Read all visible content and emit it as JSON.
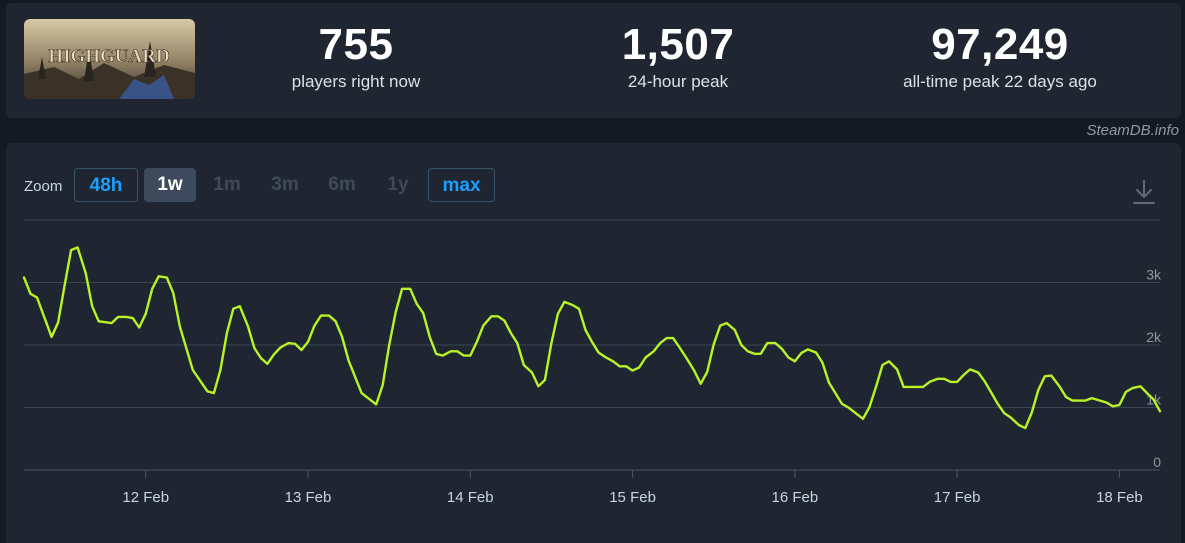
{
  "stats": {
    "current": {
      "value": "755",
      "label": "players right now"
    },
    "peak24": {
      "value": "1,507",
      "label": "24-hour peak"
    },
    "alltime": {
      "value": "97,249",
      "label": "all-time peak 22 days ago"
    }
  },
  "game": {
    "logo_text": "HIGHGUARD"
  },
  "watermark": "SteamDB.info",
  "zoom": {
    "label": "Zoom",
    "buttons": [
      {
        "label": "48h",
        "state": "link"
      },
      {
        "label": "1w",
        "state": "selected"
      },
      {
        "label": "1m",
        "state": "disabled"
      },
      {
        "label": "3m",
        "state": "disabled"
      },
      {
        "label": "6m",
        "state": "disabled"
      },
      {
        "label": "1y",
        "state": "disabled"
      },
      {
        "label": "max",
        "state": "link"
      }
    ]
  },
  "icons": {
    "download": "download-icon"
  },
  "colors": {
    "line": "#b9f227",
    "accent": "#1a9fff",
    "background": "#1f2631"
  },
  "chart_data": {
    "type": "line",
    "series": [
      {
        "points": [
          [
            11.25,
            3080
          ],
          [
            11.29,
            2820
          ],
          [
            11.33,
            2760
          ],
          [
            11.42,
            2130
          ],
          [
            11.46,
            2360
          ],
          [
            11.5,
            2950
          ],
          [
            11.54,
            3520
          ],
          [
            11.58,
            3560
          ],
          [
            11.63,
            3150
          ],
          [
            11.67,
            2620
          ],
          [
            11.71,
            2380
          ],
          [
            11.79,
            2350
          ],
          [
            11.83,
            2450
          ],
          [
            11.88,
            2450
          ],
          [
            11.92,
            2430
          ],
          [
            11.96,
            2280
          ],
          [
            12.0,
            2500
          ],
          [
            12.04,
            2900
          ],
          [
            12.08,
            3100
          ],
          [
            12.13,
            3080
          ],
          [
            12.17,
            2830
          ],
          [
            12.21,
            2300
          ],
          [
            12.29,
            1600
          ],
          [
            12.38,
            1260
          ],
          [
            12.42,
            1230
          ],
          [
            12.46,
            1600
          ],
          [
            12.5,
            2190
          ],
          [
            12.54,
            2580
          ],
          [
            12.58,
            2620
          ],
          [
            12.63,
            2300
          ],
          [
            12.67,
            1950
          ],
          [
            12.71,
            1790
          ],
          [
            12.75,
            1700
          ],
          [
            12.79,
            1850
          ],
          [
            12.83,
            1960
          ],
          [
            12.88,
            2030
          ],
          [
            12.92,
            2020
          ],
          [
            12.96,
            1920
          ],
          [
            13.0,
            2050
          ],
          [
            13.04,
            2310
          ],
          [
            13.08,
            2470
          ],
          [
            13.13,
            2470
          ],
          [
            13.17,
            2380
          ],
          [
            13.21,
            2130
          ],
          [
            13.25,
            1750
          ],
          [
            13.33,
            1230
          ],
          [
            13.42,
            1050
          ],
          [
            13.46,
            1360
          ],
          [
            13.5,
            1990
          ],
          [
            13.54,
            2520
          ],
          [
            13.58,
            2900
          ],
          [
            13.63,
            2900
          ],
          [
            13.67,
            2660
          ],
          [
            13.71,
            2510
          ],
          [
            13.75,
            2130
          ],
          [
            13.79,
            1860
          ],
          [
            13.83,
            1830
          ],
          [
            13.88,
            1900
          ],
          [
            13.92,
            1900
          ],
          [
            13.96,
            1830
          ],
          [
            14.0,
            1830
          ],
          [
            14.04,
            2050
          ],
          [
            14.08,
            2310
          ],
          [
            14.13,
            2460
          ],
          [
            14.17,
            2460
          ],
          [
            14.21,
            2390
          ],
          [
            14.25,
            2190
          ],
          [
            14.29,
            2030
          ],
          [
            14.33,
            1680
          ],
          [
            14.38,
            1560
          ],
          [
            14.42,
            1340
          ],
          [
            14.46,
            1440
          ],
          [
            14.5,
            2030
          ],
          [
            14.54,
            2500
          ],
          [
            14.58,
            2690
          ],
          [
            14.63,
            2640
          ],
          [
            14.67,
            2580
          ],
          [
            14.71,
            2240
          ],
          [
            14.75,
            2050
          ],
          [
            14.79,
            1880
          ],
          [
            14.83,
            1810
          ],
          [
            14.88,
            1740
          ],
          [
            14.92,
            1660
          ],
          [
            14.96,
            1660
          ],
          [
            15.0,
            1590
          ],
          [
            15.04,
            1640
          ],
          [
            15.08,
            1800
          ],
          [
            15.13,
            1900
          ],
          [
            15.17,
            2030
          ],
          [
            15.21,
            2110
          ],
          [
            15.25,
            2110
          ],
          [
            15.29,
            1960
          ],
          [
            15.33,
            1800
          ],
          [
            15.38,
            1590
          ],
          [
            15.42,
            1380
          ],
          [
            15.46,
            1570
          ],
          [
            15.5,
            2010
          ],
          [
            15.54,
            2310
          ],
          [
            15.58,
            2350
          ],
          [
            15.63,
            2240
          ],
          [
            15.67,
            2000
          ],
          [
            15.71,
            1900
          ],
          [
            15.75,
            1860
          ],
          [
            15.79,
            1860
          ],
          [
            15.83,
            2030
          ],
          [
            15.88,
            2030
          ],
          [
            15.92,
            1940
          ],
          [
            15.96,
            1800
          ],
          [
            16.0,
            1740
          ],
          [
            16.04,
            1870
          ],
          [
            16.08,
            1930
          ],
          [
            16.13,
            1880
          ],
          [
            16.17,
            1720
          ],
          [
            16.21,
            1400
          ],
          [
            16.29,
            1060
          ],
          [
            16.33,
            1000
          ],
          [
            16.38,
            900
          ],
          [
            16.42,
            820
          ],
          [
            16.46,
            1010
          ],
          [
            16.5,
            1330
          ],
          [
            16.54,
            1680
          ],
          [
            16.58,
            1740
          ],
          [
            16.63,
            1610
          ],
          [
            16.67,
            1330
          ],
          [
            16.71,
            1330
          ],
          [
            16.75,
            1330
          ],
          [
            16.79,
            1330
          ],
          [
            16.83,
            1410
          ],
          [
            16.88,
            1460
          ],
          [
            16.92,
            1460
          ],
          [
            16.96,
            1410
          ],
          [
            17.0,
            1410
          ],
          [
            17.04,
            1520
          ],
          [
            17.08,
            1610
          ],
          [
            17.13,
            1560
          ],
          [
            17.17,
            1420
          ],
          [
            17.21,
            1240
          ],
          [
            17.25,
            1060
          ],
          [
            17.29,
            910
          ],
          [
            17.33,
            840
          ],
          [
            17.38,
            720
          ],
          [
            17.42,
            670
          ],
          [
            17.46,
            920
          ],
          [
            17.5,
            1280
          ],
          [
            17.54,
            1500
          ],
          [
            17.58,
            1510
          ],
          [
            17.63,
            1340
          ],
          [
            17.67,
            1170
          ],
          [
            17.71,
            1110
          ],
          [
            17.75,
            1110
          ],
          [
            17.79,
            1110
          ],
          [
            17.83,
            1150
          ],
          [
            17.88,
            1110
          ],
          [
            17.92,
            1080
          ],
          [
            17.96,
            1020
          ],
          [
            18.0,
            1040
          ],
          [
            18.04,
            1250
          ],
          [
            18.08,
            1310
          ],
          [
            18.13,
            1340
          ],
          [
            18.17,
            1230
          ],
          [
            18.21,
            1130
          ],
          [
            18.25,
            940
          ]
        ]
      }
    ],
    "x_ticks": [
      {
        "value": 12,
        "label": "12 Feb"
      },
      {
        "value": 13,
        "label": "13 Feb"
      },
      {
        "value": 14,
        "label": "14 Feb"
      },
      {
        "value": 15,
        "label": "15 Feb"
      },
      {
        "value": 16,
        "label": "16 Feb"
      },
      {
        "value": 17,
        "label": "17 Feb"
      },
      {
        "value": 18,
        "label": "18 Feb"
      }
    ],
    "y_ticks": [
      {
        "value": 0,
        "label": "0"
      },
      {
        "value": 1000,
        "label": "1k"
      },
      {
        "value": 2000,
        "label": "2k"
      },
      {
        "value": 3000,
        "label": "3k"
      }
    ],
    "xlim": [
      11.25,
      18.25
    ],
    "ylim": [
      0,
      4000
    ],
    "grid": true,
    "legend": "none"
  }
}
